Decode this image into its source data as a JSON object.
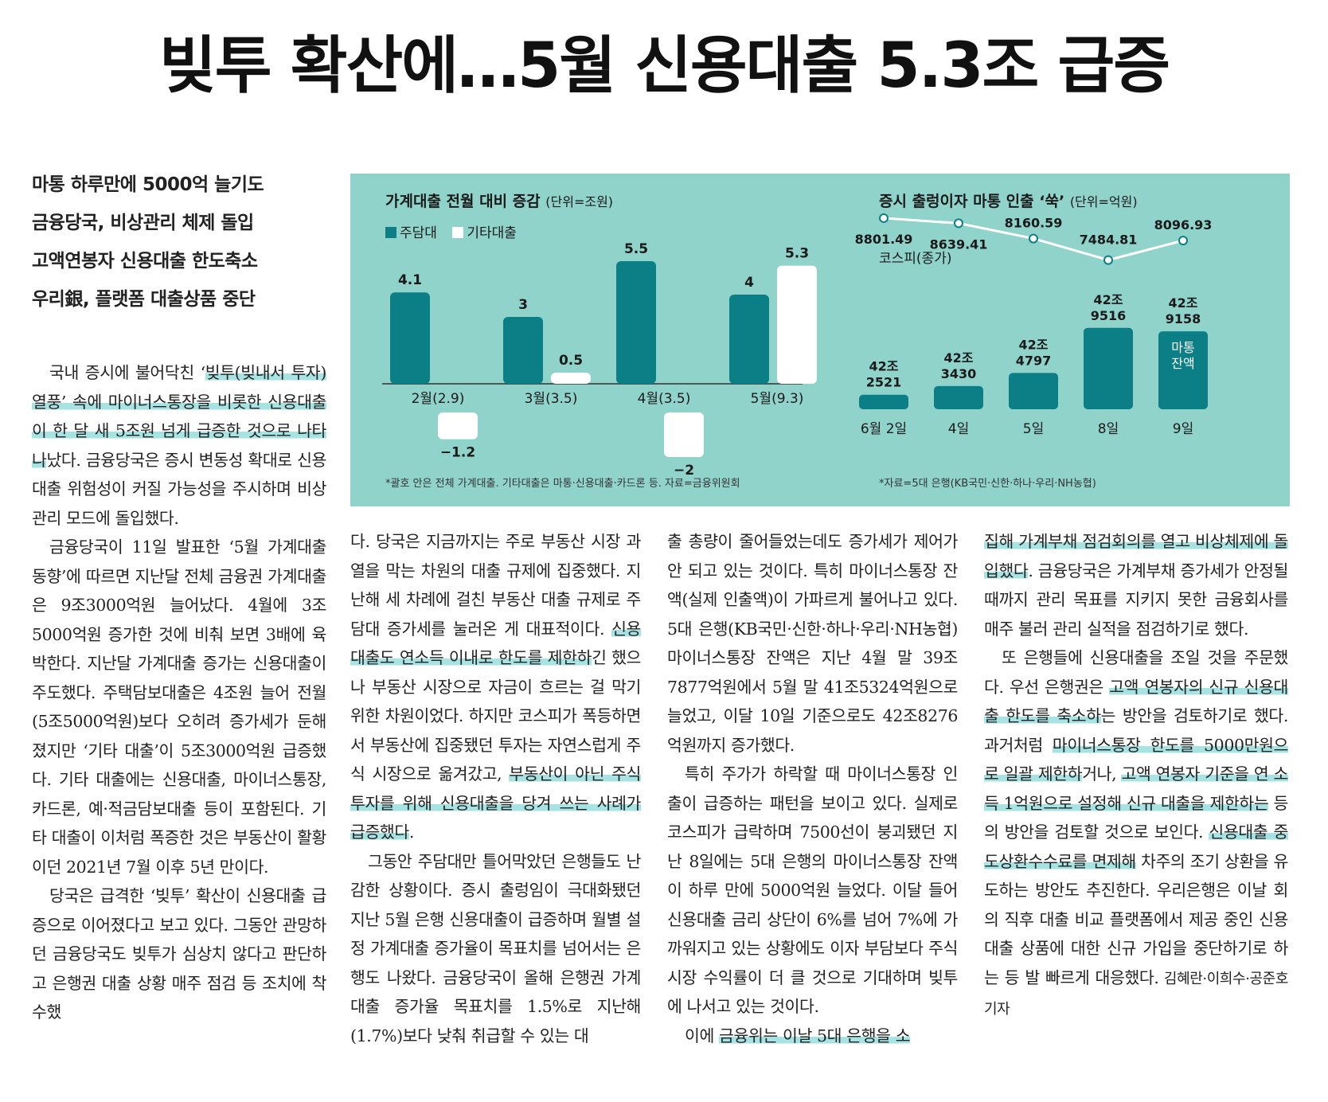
{
  "headline": "빚투 확산에…5월 신용대출 5.3조 급증",
  "subheads": [
    "마통 하루만에 5000억 늘기도",
    "금융당국, 비상관리 체제 돌입",
    "고액연봉자 신용대출 한도축소",
    "우리銀, 플랫폼 대출상품 중단"
  ],
  "chart_left": {
    "title": "가계대출 전월 대비 증감",
    "unit": "(단위=조원)",
    "legend": [
      "주담대",
      "기타대출"
    ],
    "note": "*괄호 안은 전체 가계대출. 기타대출은 마통·신용대출·카드론 등. 자료=금융위원회",
    "colors": {
      "mortgage": "#0b7e86",
      "other": "#ffffff"
    }
  },
  "chart_right": {
    "title": "증시 출렁이자 마통 인출 ‘쑥’",
    "unit": "(단위=억원)",
    "kospi_label": "코스피(종가)",
    "bar_tag": [
      "마통",
      "잔액"
    ],
    "note": "*자료=5대 은행(KB국민·신한·하나·우리·NH농협)"
  },
  "chart_data": [
    {
      "type": "bar",
      "title": "가계대출 전월 대비 증감",
      "ylabel": "(단위=조원)",
      "categories": [
        "2월(2.9)",
        "3월(3.5)",
        "4월(3.5)",
        "5월(9.3)"
      ],
      "series": [
        {
          "name": "주담대",
          "values": [
            4.1,
            3,
            5.5,
            4
          ],
          "labels": [
            "4.1",
            "3",
            "5.5",
            "4"
          ]
        },
        {
          "name": "기타대출",
          "values": [
            -1.2,
            0.5,
            -2,
            5.3
          ],
          "labels": [
            "−1.2",
            "0.5",
            "−2",
            "5.3"
          ]
        }
      ]
    },
    {
      "type": "line",
      "title": "증시 출렁이자 마통 인출 ‘쑥’",
      "categories": [
        "6월 2일",
        "4일",
        "5일",
        "8일",
        "9일"
      ],
      "series": [
        {
          "name": "코스피(종가)",
          "values": [
            8801.49,
            8639.41,
            8160.59,
            7484.81,
            8096.93
          ],
          "labels": [
            "8801.49",
            "8639.41",
            "8160.59",
            "7484.81",
            "8096.93"
          ]
        }
      ]
    },
    {
      "type": "bar",
      "title": "증시 출렁이자 마통 인출 ‘쑥’",
      "ylabel": "(단위=억원)",
      "categories": [
        "6월 2일",
        "4일",
        "5일",
        "8일",
        "9일"
      ],
      "series": [
        {
          "name": "마통 잔액",
          "values": [
            422521,
            423430,
            424797,
            429516,
            429158
          ],
          "labels": [
            [
              "42조",
              "2521"
            ],
            [
              "42조",
              "3430"
            ],
            [
              "42조",
              "4797"
            ],
            [
              "42조",
              "9516"
            ],
            [
              "42조",
              "9158"
            ]
          ]
        }
      ]
    }
  ],
  "body": {
    "col1": [
      [
        {
          "t": "국내 증시에 불어닥친 ‘"
        },
        {
          "t": "빚투(빚내서 투자) 열풍’ 속에 마이너스통장을 비롯한 신용대출이 한 달 새 5조원 넘게 급증한 것으로 나타나",
          "h": 1
        },
        {
          "t": "났다. 금융당국은 증시 변동성 확대로 신용대출 위험성이 커질 가능성을 주시하며 비상관리 모드에 돌입했다."
        }
      ],
      [
        {
          "t": "금융당국이 11일 발표한 ‘5월 가계대출 동향’에 따르면 지난달 전체 금융권 가계대출은 9조3000억원 늘어났다. 4월에 3조5000억원 증가한 것에 비춰 보면 3배에 육박한다. 지난달 가계대출 증가는 신용대출이 주도했다. 주택담보대출은 4조원 늘어 전월(5조5000억원)보다 오히려 증가세가 둔해졌지만 ‘기타 대출’이 5조3000억원 급증했다. 기타 대출에는 신용대출, 마이너스통장, 카드론, 예·적금담보대출 등이 포함된다. 기타 대출이 이처럼 폭증한 것은 부동산이 활황이던 2021년 7월 이후 5년 만이다."
        }
      ],
      [
        {
          "t": "당국은 급격한 ‘빚투’ 확산이 신용대출 급증으로 이어졌다고 보고 있다. 그동안 관망하던 금융당국도 빚투가 심상치 않다고 판단하고 은행권 대출 상황 매주 점검 등 조치에 착수했"
        }
      ]
    ],
    "col2": [
      [
        {
          "t": "다. 당국은 지금까지는 주로 부동산 시장 과열을 막는 차원의 대출 규제에 집중했다. 지난해 세 차례에 걸친 부동산 대출 규제로 주담대 증가세를 눌러온 게 대표적이다. "
        },
        {
          "t": "신용대출도 연소득 이내로 한도를 제한하",
          "h": 1
        },
        {
          "t": "긴 했으나 부동산 시장으로 자금이 흐르는 걸 막기 위한 차원이었다. 하지만 코스피가 폭등하면서 부동산에 집중됐던 투자는 자연스럽게 주식 시장으로 옮겨갔고, "
        },
        {
          "t": "부동산이 아닌 주식 투자를 위해 신용대출을 당겨 쓰는 사례가 급증했다",
          "h": 1
        },
        {
          "t": "."
        }
      ],
      [
        {
          "t": "그동안 주담대만 틀어막았던 은행들도 난감한 상황이다. 증시 출렁임이 극대화됐던 지난 5월 은행 신용대출이 급증하며 월별 설정 가계대출 증가율이 목표치를 넘어서는 은행도 나왔다. 금융당국이 올해 은행권 가계대출 증가율 목표치를 1.5%로 지난해(1.7%)보다 낮춰 취급할 수 있는 대"
        }
      ]
    ],
    "col3": [
      [
        {
          "t": "출 총량이 줄어들었는데도 증가세가 제어가 안 되고 있는 것이다. 특히 마이너스통장 잔액(실제 인출액)이 가파르게 불어나고 있다. 5대 은행(KB국민·신한·하나·우리·NH농협) 마이너스통장 잔액은 지난 4월 말 39조7877억원에서 5월 말 41조5324억원으로 늘었고, 이달 10일 기준으로도 42조8276억원까지 증가했다."
        }
      ],
      [
        {
          "t": "특히 주가가 하락할 때 마이너스통장 인출이 급증하는 패턴을 보이고 있다. 실제로 코스피가 급락하며 7500선이 붕괴됐던 지난 8일에는 5대 은행의 마이너스통장 잔액이 하루 만에 5000억원 늘었다. 이달 들어 신용대출 금리 상단이 6%를 넘어 7%에 가까워지고 있는 상황에도 이자 부담보다 주식 시장 수익률이 더 클 것으로 기대하며 빚투에 나서고 있는 것이다."
        }
      ],
      [
        {
          "t": "이에 "
        },
        {
          "t": "금융위는 이날 5대 은행을 소",
          "h": 1
        }
      ]
    ],
    "col4": [
      [
        {
          "t": "집해 가계부채 점검회의를 열고 비상체제에 돌입했다",
          "h": 1
        },
        {
          "t": ". 금융당국은 가계부채 증가세가 안정될 때까지 관리 목표를 지키지 못한 금융회사를 매주 불러 관리 실적을 점검하기로 했다."
        }
      ],
      [
        {
          "t": "또 은행들에 신용대출을 조일 것을 주문했다. 우선 은행권은 "
        },
        {
          "t": "고액 연봉자의 신규 신용대출 한도를 축소하",
          "h": 1
        },
        {
          "t": "는 방안을 검토하기로 했다. 과거처럼 "
        },
        {
          "t": "마이너스통장 한도를 5000만원으로 일괄 제한하",
          "h": 1
        },
        {
          "t": "거나, "
        },
        {
          "t": "고액 연봉자 기준을 연 소득 1억원으로 설정해 신규 대출을 제한하는",
          "h": 1
        },
        {
          "t": " 등의 방안을 검토할 것으로 보인다. "
        },
        {
          "t": "신용대출 중도상환수수료를 면제해",
          "h": 1
        },
        {
          "t": " 차주의 조기 상환을 유도하는 방안도 추진한다. 우리은행은 이날 회의 직후 대출 비교 플랫폼에서 제공 중인 신용대출 상품에 대한 신규 가입을 중단하기로 하는 등 발 빠르게 대응했다."
        }
      ]
    ],
    "byline": "김혜란·이희수·공준호 기자"
  }
}
